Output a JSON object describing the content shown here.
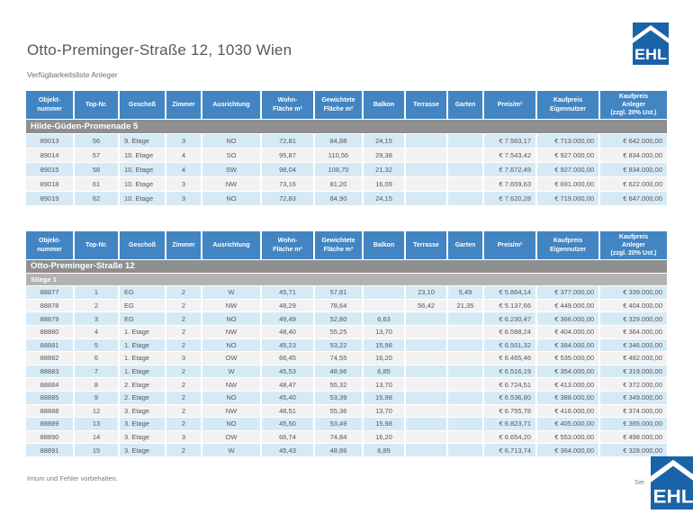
{
  "page": {
    "title": "Otto-Preminger-Straße 12, 1030 Wien",
    "subtitle": "Verfügbarkeitsliste Anleger",
    "footer_left": "Irrtum und Fehler vorbehalten.",
    "footer_right": "Sei",
    "logo_text": "EHL",
    "colors": {
      "header_blue": "#4285c2",
      "row_blue": "#d6eaf6",
      "row_gray": "#f2f2f2",
      "section_gray": "#8f8f8f",
      "subsection_gray": "#b3b3b3",
      "logo_blue": "#1b63a8"
    }
  },
  "columns": [
    "Objekt-\nnummer",
    "Top-Nr.",
    "Geschoß",
    "Zimmer",
    "Ausrichtung",
    "Wohn-\nFläche m²",
    "Gewichtete\nFläche m²",
    "Balkon",
    "Terrasse",
    "Garten",
    "Preis/m²",
    "Kaufpreis\nEigennutzer",
    "Kaufpreis\nAnleger\n(zzgl. 20% Ust.)"
  ],
  "tables": [
    {
      "section": "Hilde-Güden-Promenade 5",
      "subsection": null,
      "rows": [
        [
          "89013",
          "56",
          "9. Etage",
          "3",
          "NO",
          "72,81",
          "84,88",
          "24,15",
          "",
          "",
          "€ 7.563,17",
          "€ 713.000,00",
          "€ 642.000,00"
        ],
        [
          "89014",
          "57",
          "10. Etage",
          "4",
          "SO",
          "95,87",
          "110,56",
          "29,38",
          "",
          "",
          "€ 7.543,42",
          "€ 927.000,00",
          "€ 834.000,00"
        ],
        [
          "89015",
          "58",
          "10. Etage",
          "4",
          "SW",
          "98,04",
          "108,70",
          "21,32",
          "",
          "",
          "€ 7.672,49",
          "€ 927.000,00",
          "€ 834.000,00"
        ],
        [
          "89018",
          "61",
          "10. Etage",
          "3",
          "NW",
          "73,16",
          "81,20",
          "16,09",
          "",
          "",
          "€ 7.659,63",
          "€ 691.000,00",
          "€ 622.000,00"
        ],
        [
          "89019",
          "62",
          "10. Etage",
          "3",
          "NO",
          "72,83",
          "84,90",
          "24,15",
          "",
          "",
          "€ 7.620,28",
          "€ 719.000,00",
          "€ 647.000,00"
        ]
      ]
    },
    {
      "section": "Otto-Preminger-Straße 12",
      "subsection": "Stiege 1",
      "rows": [
        [
          "88877",
          "1",
          "EG",
          "2",
          "W",
          "45,71",
          "57,81",
          "",
          "23,10",
          "5,49",
          "€ 5.864,14",
          "€ 377.000,00",
          "€ 339.000,00"
        ],
        [
          "88878",
          "2",
          "EG",
          "2",
          "NW",
          "48,29",
          "78,64",
          "",
          "56,42",
          "21,35",
          "€ 5.137,66",
          "€ 449.000,00",
          "€ 404.000,00"
        ],
        [
          "88879",
          "3",
          "EG",
          "2",
          "NO",
          "49,49",
          "52,80",
          "6,63",
          "",
          "",
          "€ 6.230,47",
          "€ 366.000,00",
          "€ 329.000,00"
        ],
        [
          "88880",
          "4",
          "1. Etage",
          "2",
          "NW",
          "48,40",
          "55,25",
          "13,70",
          "",
          "",
          "€ 6.588,24",
          "€ 404.000,00",
          "€ 364.000,00"
        ],
        [
          "88881",
          "5",
          "1. Etage",
          "2",
          "NO",
          "45,23",
          "53,22",
          "15,98",
          "",
          "",
          "€ 6.501,32",
          "€ 384.000,00",
          "€ 346.000,00"
        ],
        [
          "88882",
          "6",
          "1. Etage",
          "3",
          "OW",
          "66,45",
          "74,55",
          "16,20",
          "",
          "",
          "€ 6.465,46",
          "€ 535.000,00",
          "€ 482.000,00"
        ],
        [
          "88883",
          "7",
          "1. Etage",
          "2",
          "W",
          "45,53",
          "48,96",
          "6,85",
          "",
          "",
          "€ 6.516,19",
          "€ 354.000,00",
          "€ 319.000,00"
        ],
        [
          "88884",
          "8",
          "2. Etage",
          "2",
          "NW",
          "48,47",
          "55,32",
          "13,70",
          "",
          "",
          "€ 6.724,51",
          "€ 413.000,00",
          "€ 372.000,00"
        ],
        [
          "88885",
          "9",
          "2. Etage",
          "2",
          "NO",
          "45,40",
          "53,39",
          "15,98",
          "",
          "",
          "€ 6.536,80",
          "€ 388.000,00",
          "€ 349.000,00"
        ],
        [
          "88888",
          "12",
          "3. Etage",
          "2",
          "NW",
          "48,51",
          "55,36",
          "13,70",
          "",
          "",
          "€ 6.755,78",
          "€ 416.000,00",
          "€ 374.000,00"
        ],
        [
          "88889",
          "13",
          "3. Etage",
          "2",
          "NO",
          "45,50",
          "53,49",
          "15,98",
          "",
          "",
          "€ 6.823,71",
          "€ 405.000,00",
          "€ 365.000,00"
        ],
        [
          "88890",
          "14",
          "3. Etage",
          "3",
          "OW",
          "66,74",
          "74,84",
          "16,20",
          "",
          "",
          "€ 6.654,20",
          "€ 553.000,00",
          "€ 498.000,00"
        ],
        [
          "88891",
          "15",
          "3. Etage",
          "2",
          "W",
          "45,43",
          "48,86",
          "6,85",
          "",
          "",
          "€ 6.713,74",
          "€ 364.000,00",
          "€ 328.000,00"
        ]
      ]
    }
  ]
}
